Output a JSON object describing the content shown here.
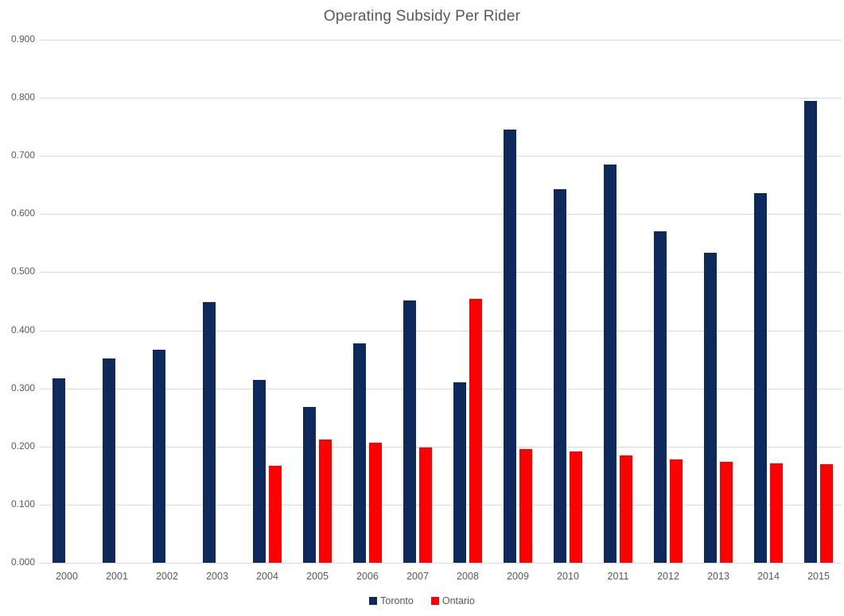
{
  "chart_data": {
    "type": "bar",
    "title": "Operating Subsidy Per Rider",
    "categories": [
      "2000",
      "2001",
      "2002",
      "2003",
      "2004",
      "2005",
      "2006",
      "2007",
      "2008",
      "2009",
      "2010",
      "2011",
      "2012",
      "2013",
      "2014",
      "2015"
    ],
    "series": [
      {
        "name": "Toronto",
        "color": "#0e2a5c",
        "values": [
          0.317,
          0.352,
          0.367,
          0.449,
          0.314,
          0.268,
          0.378,
          0.452,
          0.31,
          0.745,
          0.643,
          0.685,
          0.571,
          0.533,
          0.636,
          0.795
        ]
      },
      {
        "name": "Ontario",
        "color": "#fe0000",
        "values": [
          null,
          null,
          null,
          null,
          0.167,
          0.212,
          0.206,
          0.199,
          0.454,
          0.195,
          0.192,
          0.184,
          0.178,
          0.174,
          0.171,
          0.17
        ]
      }
    ],
    "ylim": [
      0,
      0.9
    ],
    "yticks": [
      "0.000",
      "0.100",
      "0.200",
      "0.300",
      "0.400",
      "0.500",
      "0.600",
      "0.700",
      "0.800",
      "0.900"
    ],
    "grid": true,
    "legend_position": "bottom",
    "gridline_color": "#d9d9d9",
    "text_color": "#595959"
  }
}
